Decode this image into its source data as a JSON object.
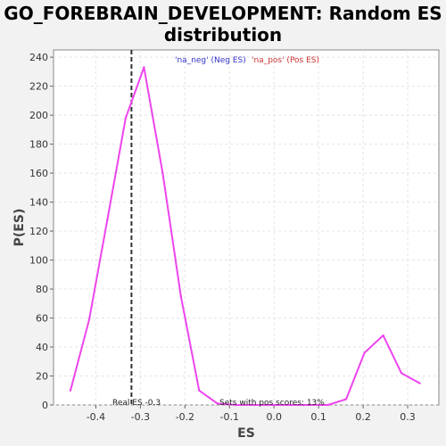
{
  "chart_data": {
    "type": "line",
    "title_lines": [
      "GO_FOREBRAIN_DEVELOPMENT: Random ES",
      "distribution"
    ],
    "xlabel": "ES",
    "ylabel": "P(ES)",
    "xlim": [
      -0.495,
      0.37
    ],
    "ylim": [
      0,
      245
    ],
    "x_ticks": [
      -0.4,
      -0.3,
      -0.2,
      -0.1,
      0.0,
      0.1,
      0.2,
      0.3
    ],
    "x_tick_labels": [
      "-0.4",
      "-0.3",
      "-0.2",
      "-0.1",
      "0.0",
      "0.1",
      "0.2",
      "0.3"
    ],
    "y_ticks": [
      0,
      20,
      40,
      60,
      80,
      100,
      120,
      140,
      160,
      180,
      200,
      220,
      240
    ],
    "y_tick_labels": [
      "0",
      "20",
      "40",
      "60",
      "80",
      "100",
      "120",
      "140",
      "160",
      "180",
      "200",
      "220",
      "240"
    ],
    "grid": true,
    "line_color": "#ee44ee",
    "series": [
      {
        "x": [
          -0.457,
          -0.415,
          -0.374,
          -0.333,
          -0.292,
          -0.25,
          -0.209,
          -0.168,
          -0.127,
          -0.085,
          -0.044,
          -0.003,
          0.038,
          0.08,
          0.121,
          0.162,
          0.203,
          0.245,
          0.286,
          0.327
        ],
        "values": [
          10,
          59,
          128,
          198,
          233,
          160,
          75,
          10,
          1,
          0,
          0,
          0,
          0,
          0,
          0,
          4,
          36,
          48,
          22,
          15
        ]
      }
    ],
    "real_es": {
      "x": -0.32,
      "label": "Real ES -0.3",
      "color": "#333333"
    },
    "legend": {
      "placement": "top-center",
      "neg": "'na_neg' (Neg ES)",
      "pos": "'na_pos' (Pos ES)",
      "neg_color": "#3333cc",
      "pos_color": "#cc3333"
    },
    "pos_scores_note": "Sets with pos scores: 13%"
  }
}
